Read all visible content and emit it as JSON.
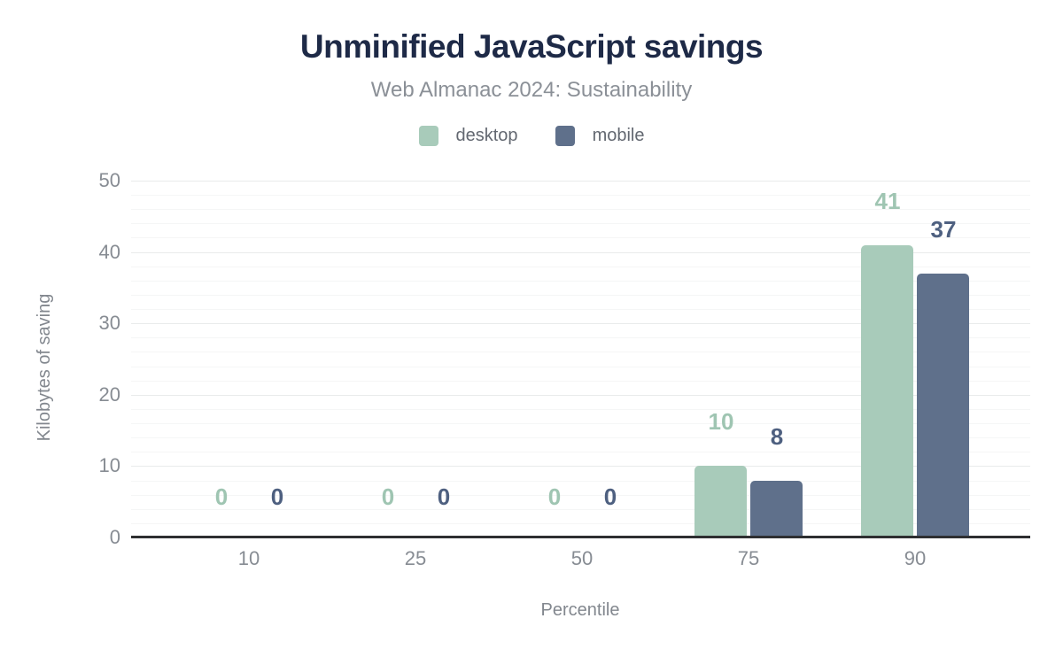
{
  "header": {
    "title": "Unminified JavaScript savings",
    "subtitle": "Web Almanac 2024: Sustainability"
  },
  "chart_data": {
    "type": "bar",
    "title": "Unminified JavaScript savings",
    "subtitle": "Web Almanac 2024: Sustainability",
    "xlabel": "Percentile",
    "ylabel": "Kilobytes of saving",
    "categories": [
      "10",
      "25",
      "50",
      "75",
      "90"
    ],
    "series": [
      {
        "name": "desktop",
        "values": [
          0,
          0,
          0,
          10,
          41
        ],
        "color": "#a8cbba",
        "label_color": "#9fc5b2"
      },
      {
        "name": "mobile",
        "values": [
          0,
          0,
          0,
          8,
          37
        ],
        "color": "#5f708b",
        "label_color": "#4e6080"
      }
    ],
    "ylim": [
      0,
      50
    ],
    "y_ticks": [
      0,
      10,
      20,
      30,
      40,
      50
    ],
    "minor_grid_step": 2,
    "major_grid_step": 10,
    "grid": true,
    "legend_position": "top",
    "data_labels_shown": true
  },
  "colors": {
    "title": "#1e2a47",
    "subtitle": "#8b9097",
    "axis_text": "#878c93",
    "axis_title": "#82878e",
    "baseline": "#2e2f31",
    "grid_major": "#e9ebeb",
    "grid_minor": "#f5f6f6",
    "background": "#ffffff"
  }
}
